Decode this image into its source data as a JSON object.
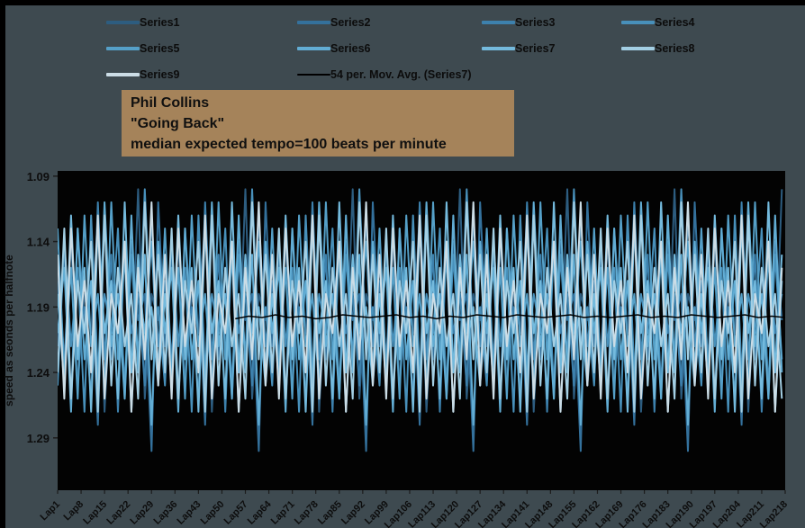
{
  "window": {
    "background": "#3e4a50",
    "edge_color": "#000000"
  },
  "legend": {
    "items": [
      {
        "label": "Series1",
        "color": "#2d5d80"
      },
      {
        "label": "Series2",
        "color": "#34719c"
      },
      {
        "label": "Series3",
        "color": "#3d81ad"
      },
      {
        "label": "Series4",
        "color": "#4890ba"
      },
      {
        "label": "Series5",
        "color": "#55a0c8"
      },
      {
        "label": "Series6",
        "color": "#62add4"
      },
      {
        "label": "Series7",
        "color": "#74badd"
      },
      {
        "label": "Series8",
        "color": "#a3cfe4"
      },
      {
        "label": "Series9",
        "color": "#ccdde6"
      },
      {
        "label": "54 per. Mov. Avg. (Series7)",
        "color": "#000000"
      }
    ]
  },
  "title_box": {
    "background": "#a5835a",
    "line1": "Phil Collins",
    "line2": "\"Going Back\"",
    "line3": "median expected tempo=100 beats per minute"
  },
  "chart_data": {
    "type": "line",
    "title": "Phil Collins \"Going Back\" median expected tempo=100 beats per minute",
    "xlabel": "",
    "ylabel": "speed as seonds per halfnote",
    "x_label_prefix": "Lap",
    "x_range": [
      1,
      218
    ],
    "x_tick_labels": [
      "Lap1",
      "Lap8",
      "Lap15",
      "Lap22",
      "Lap29",
      "Lap36",
      "Lap43",
      "Lap50",
      "Lap57",
      "Lap64",
      "Lap71",
      "Lap78",
      "Lap85",
      "Lap92",
      "Lap99",
      "Lap106",
      "Lap113",
      "Lap120",
      "Lap127",
      "Lap134",
      "Lap141",
      "Lap148",
      "Lap155",
      "Lap162",
      "Lap169",
      "Lap176",
      "Lap183",
      "Lap190",
      "Lap197",
      "Lap204",
      "Lap211",
      "Lap218"
    ],
    "x_tick_step": 7,
    "ylim": [
      1.086,
      1.33
    ],
    "y_ticks": [
      1.09,
      1.14,
      1.19,
      1.24,
      1.29
    ],
    "y_axis_reversed_increasing_downward": true,
    "plot_bg": "#030303",
    "grid": false,
    "legend_position": "top",
    "series": [
      {
        "name": "Series1",
        "color": "#2d5d80",
        "x_start": 1,
        "x_step": 2,
        "values": [
          1.16,
          1.23,
          1.14,
          1.25,
          1.18,
          1.21,
          1.12,
          1.27,
          1.17,
          1.22,
          1.15,
          1.24,
          1.1,
          1.26,
          1.18,
          1.2,
          1.16,
          1.23,
          1.14,
          1.25,
          1.18,
          1.21,
          1.12,
          1.27,
          1.17,
          1.22,
          1.15,
          1.24,
          1.1,
          1.26,
          1.18,
          1.2,
          1.16,
          1.23,
          1.14,
          1.25,
          1.18,
          1.21,
          1.12,
          1.27,
          1.17,
          1.22,
          1.15,
          1.24,
          1.1,
          1.26,
          1.18,
          1.2,
          1.16,
          1.23,
          1.14,
          1.25,
          1.18,
          1.21,
          1.12,
          1.27,
          1.17,
          1.22,
          1.15,
          1.24,
          1.1,
          1.26,
          1.18,
          1.2,
          1.16,
          1.23,
          1.14,
          1.25,
          1.18,
          1.21,
          1.12,
          1.27,
          1.17,
          1.22,
          1.15,
          1.24,
          1.1,
          1.26,
          1.18,
          1.2,
          1.16,
          1.23,
          1.14,
          1.25,
          1.18,
          1.21,
          1.12,
          1.27,
          1.17,
          1.22,
          1.15,
          1.24,
          1.1,
          1.26,
          1.18,
          1.2,
          1.16,
          1.23,
          1.14,
          1.25,
          1.18,
          1.21,
          1.12,
          1.27,
          1.17,
          1.22,
          1.15,
          1.24,
          1.1
        ]
      },
      {
        "name": "Series2",
        "color": "#34719c",
        "x_start": 1,
        "x_step": 2,
        "values": [
          1.22,
          1.15,
          1.26,
          1.13,
          1.21,
          1.17,
          1.28,
          1.12,
          1.23,
          1.16,
          1.25,
          1.14,
          1.2,
          1.18,
          1.3,
          1.11,
          1.22,
          1.15,
          1.26,
          1.13,
          1.21,
          1.17,
          1.28,
          1.12,
          1.23,
          1.16,
          1.25,
          1.14,
          1.2,
          1.18,
          1.3,
          1.11,
          1.22,
          1.15,
          1.26,
          1.13,
          1.21,
          1.17,
          1.28,
          1.12,
          1.23,
          1.16,
          1.25,
          1.14,
          1.2,
          1.18,
          1.3,
          1.11,
          1.22,
          1.15,
          1.26,
          1.13,
          1.21,
          1.17,
          1.28,
          1.12,
          1.23,
          1.16,
          1.25,
          1.14,
          1.2,
          1.18,
          1.3,
          1.11,
          1.22,
          1.15,
          1.26,
          1.13,
          1.21,
          1.17,
          1.28,
          1.12,
          1.23,
          1.16,
          1.25,
          1.14,
          1.2,
          1.18,
          1.3,
          1.11,
          1.22,
          1.15,
          1.26,
          1.13,
          1.21,
          1.17,
          1.28,
          1.12,
          1.23,
          1.16,
          1.25,
          1.14,
          1.2,
          1.18,
          1.3,
          1.11,
          1.22,
          1.15,
          1.26,
          1.13,
          1.21,
          1.17,
          1.28,
          1.12,
          1.23,
          1.16,
          1.25,
          1.14,
          1.2
        ]
      },
      {
        "name": "Series3",
        "color": "#3d81ad",
        "x_start": 1,
        "x_step": 2,
        "values": [
          1.17,
          1.24,
          1.13,
          1.22,
          1.19,
          1.26,
          1.11,
          1.23,
          1.15,
          1.27,
          1.14,
          1.21,
          1.18,
          1.25,
          1.12,
          1.22,
          1.17,
          1.24,
          1.13,
          1.22,
          1.19,
          1.26,
          1.11,
          1.23,
          1.15,
          1.27,
          1.14,
          1.21,
          1.18,
          1.25,
          1.12,
          1.22,
          1.17,
          1.24,
          1.13,
          1.22,
          1.19,
          1.26,
          1.11,
          1.23,
          1.15,
          1.27,
          1.14,
          1.21,
          1.18,
          1.25,
          1.12,
          1.22,
          1.17,
          1.24,
          1.13,
          1.22,
          1.19,
          1.26,
          1.11,
          1.23,
          1.15,
          1.27,
          1.14,
          1.21,
          1.18,
          1.25,
          1.12,
          1.22,
          1.17,
          1.24,
          1.13,
          1.22,
          1.19,
          1.26,
          1.11,
          1.23,
          1.15,
          1.27,
          1.14,
          1.21,
          1.18,
          1.25,
          1.12,
          1.22,
          1.17,
          1.24,
          1.13,
          1.22,
          1.19,
          1.26,
          1.11,
          1.23,
          1.15,
          1.27,
          1.14,
          1.21,
          1.18,
          1.25,
          1.12,
          1.22,
          1.17,
          1.24,
          1.13,
          1.22,
          1.19,
          1.26,
          1.11,
          1.23,
          1.15,
          1.27,
          1.14,
          1.21,
          1.18
        ]
      },
      {
        "name": "Series4",
        "color": "#4890ba",
        "x_start": 1,
        "x_step": 2,
        "values": [
          1.25,
          1.14,
          1.22,
          1.16,
          1.27,
          1.12,
          1.24,
          1.18,
          1.21,
          1.13,
          1.26,
          1.15,
          1.23,
          1.1,
          1.22,
          1.19,
          1.25,
          1.14,
          1.22,
          1.16,
          1.27,
          1.12,
          1.24,
          1.18,
          1.21,
          1.13,
          1.26,
          1.15,
          1.23,
          1.1,
          1.22,
          1.19,
          1.25,
          1.14,
          1.22,
          1.16,
          1.27,
          1.12,
          1.24,
          1.18,
          1.21,
          1.13,
          1.26,
          1.15,
          1.23,
          1.1,
          1.22,
          1.19,
          1.25,
          1.14,
          1.22,
          1.16,
          1.27,
          1.12,
          1.24,
          1.18,
          1.21,
          1.13,
          1.26,
          1.15,
          1.23,
          1.1,
          1.22,
          1.19,
          1.25,
          1.14,
          1.22,
          1.16,
          1.27,
          1.12,
          1.24,
          1.18,
          1.21,
          1.13,
          1.26,
          1.15,
          1.23,
          1.1,
          1.22,
          1.19,
          1.25,
          1.14,
          1.22,
          1.16,
          1.27,
          1.12,
          1.24,
          1.18,
          1.21,
          1.13,
          1.26,
          1.15,
          1.23,
          1.1,
          1.22,
          1.19,
          1.25,
          1.14,
          1.22,
          1.16,
          1.27,
          1.12,
          1.24,
          1.18,
          1.21,
          1.13,
          1.26,
          1.15,
          1.23
        ]
      },
      {
        "name": "Series5",
        "color": "#55a0c8",
        "x_start": 1,
        "x_step": 2,
        "values": [
          1.13,
          1.24,
          1.16,
          1.26,
          1.12,
          1.22,
          1.18,
          1.25,
          1.11,
          1.23,
          1.15,
          1.27,
          1.17,
          1.21,
          1.14,
          1.24,
          1.13,
          1.24,
          1.16,
          1.26,
          1.12,
          1.22,
          1.18,
          1.25,
          1.11,
          1.23,
          1.15,
          1.27,
          1.17,
          1.21,
          1.14,
          1.24,
          1.13,
          1.24,
          1.16,
          1.26,
          1.12,
          1.22,
          1.18,
          1.25,
          1.11,
          1.23,
          1.15,
          1.27,
          1.17,
          1.21,
          1.14,
          1.24,
          1.13,
          1.24,
          1.16,
          1.26,
          1.12,
          1.22,
          1.18,
          1.25,
          1.11,
          1.23,
          1.15,
          1.27,
          1.17,
          1.21,
          1.14,
          1.24,
          1.13,
          1.24,
          1.16,
          1.26,
          1.12,
          1.22,
          1.18,
          1.25,
          1.11,
          1.23,
          1.15,
          1.27,
          1.17,
          1.21,
          1.14,
          1.24,
          1.13,
          1.24,
          1.16,
          1.26,
          1.12,
          1.22,
          1.18,
          1.25,
          1.11,
          1.23,
          1.15,
          1.27,
          1.17,
          1.21,
          1.14,
          1.24,
          1.13,
          1.24,
          1.16,
          1.26,
          1.12,
          1.22,
          1.18,
          1.25,
          1.11,
          1.23,
          1.15,
          1.27,
          1.17
        ]
      },
      {
        "name": "Series6",
        "color": "#62add4",
        "x_start": 1,
        "x_step": 2,
        "values": [
          1.21,
          1.16,
          1.27,
          1.13,
          1.23,
          1.17,
          1.25,
          1.11,
          1.22,
          1.18,
          1.26,
          1.12,
          1.24,
          1.15,
          1.28,
          1.14,
          1.21,
          1.16,
          1.27,
          1.13,
          1.23,
          1.17,
          1.25,
          1.11,
          1.22,
          1.18,
          1.26,
          1.12,
          1.24,
          1.15,
          1.28,
          1.14,
          1.21,
          1.16,
          1.27,
          1.13,
          1.23,
          1.17,
          1.25,
          1.11,
          1.22,
          1.18,
          1.26,
          1.12,
          1.24,
          1.15,
          1.28,
          1.14,
          1.21,
          1.16,
          1.27,
          1.13,
          1.23,
          1.17,
          1.25,
          1.11,
          1.22,
          1.18,
          1.26,
          1.12,
          1.24,
          1.15,
          1.28,
          1.14,
          1.21,
          1.16,
          1.27,
          1.13,
          1.23,
          1.17,
          1.25,
          1.11,
          1.22,
          1.18,
          1.26,
          1.12,
          1.24,
          1.15,
          1.28,
          1.14,
          1.21,
          1.16,
          1.27,
          1.13,
          1.23,
          1.17,
          1.25,
          1.11,
          1.22,
          1.18,
          1.26,
          1.12,
          1.24,
          1.15,
          1.28,
          1.14,
          1.21,
          1.16,
          1.27,
          1.13,
          1.23,
          1.17,
          1.25,
          1.11,
          1.22,
          1.18,
          1.26,
          1.12,
          1.24
        ]
      },
      {
        "name": "Series7",
        "color": "#74badd",
        "x_start": 1,
        "x_step": 2,
        "values": [
          1.18,
          1.25,
          1.12,
          1.23,
          1.16,
          1.27,
          1.13,
          1.21,
          1.17,
          1.26,
          1.11,
          1.24,
          1.15,
          1.22,
          1.19,
          1.25,
          1.18,
          1.25,
          1.12,
          1.23,
          1.16,
          1.27,
          1.13,
          1.21,
          1.17,
          1.26,
          1.11,
          1.24,
          1.15,
          1.22,
          1.19,
          1.25,
          1.18,
          1.25,
          1.12,
          1.23,
          1.16,
          1.27,
          1.13,
          1.21,
          1.17,
          1.26,
          1.11,
          1.24,
          1.15,
          1.22,
          1.19,
          1.25,
          1.18,
          1.25,
          1.12,
          1.23,
          1.16,
          1.27,
          1.13,
          1.21,
          1.17,
          1.26,
          1.11,
          1.24,
          1.15,
          1.22,
          1.19,
          1.25,
          1.18,
          1.25,
          1.12,
          1.23,
          1.16,
          1.27,
          1.13,
          1.21,
          1.17,
          1.26,
          1.11,
          1.24,
          1.15,
          1.22,
          1.19,
          1.25,
          1.18,
          1.25,
          1.12,
          1.23,
          1.16,
          1.27,
          1.13,
          1.21,
          1.17,
          1.26,
          1.11,
          1.24,
          1.15,
          1.22,
          1.19,
          1.25,
          1.18,
          1.25,
          1.12,
          1.23,
          1.16,
          1.27,
          1.13,
          1.21,
          1.17,
          1.26,
          1.11,
          1.24,
          1.15
        ]
      },
      {
        "name": "Series8",
        "color": "#a3cfe4",
        "x_start": 1,
        "x_step": 2,
        "values": [
          1.24,
          1.13,
          1.26,
          1.17,
          1.21,
          1.14,
          1.27,
          1.12,
          1.25,
          1.16,
          1.22,
          1.18,
          1.26,
          1.11,
          1.23,
          1.15,
          1.24,
          1.13,
          1.26,
          1.17,
          1.21,
          1.14,
          1.27,
          1.12,
          1.25,
          1.16,
          1.22,
          1.18,
          1.26,
          1.11,
          1.23,
          1.15,
          1.24,
          1.13,
          1.26,
          1.17,
          1.21,
          1.14,
          1.27,
          1.12,
          1.25,
          1.16,
          1.22,
          1.18,
          1.26,
          1.11,
          1.23,
          1.15,
          1.24,
          1.13,
          1.26,
          1.17,
          1.21,
          1.14,
          1.27,
          1.12,
          1.25,
          1.16,
          1.22,
          1.18,
          1.26,
          1.11,
          1.23,
          1.15,
          1.24,
          1.13,
          1.26,
          1.17,
          1.21,
          1.14,
          1.27,
          1.12,
          1.25,
          1.16,
          1.22,
          1.18,
          1.26,
          1.11,
          1.23,
          1.15,
          1.24,
          1.13,
          1.26,
          1.17,
          1.21,
          1.14,
          1.27,
          1.12,
          1.25,
          1.16,
          1.22,
          1.18,
          1.26,
          1.11,
          1.23,
          1.15,
          1.24,
          1.13,
          1.26,
          1.17,
          1.21,
          1.14,
          1.27,
          1.12,
          1.25,
          1.16,
          1.22,
          1.18,
          1.26
        ]
      },
      {
        "name": "Series9",
        "color": "#ccdde6",
        "x_start": 1,
        "x_step": 2,
        "values": [
          1.15,
          1.26,
          1.13,
          1.22,
          1.17,
          1.24,
          1.12,
          1.26,
          1.18,
          1.21,
          1.14,
          1.27,
          1.16,
          1.23,
          1.11,
          1.25,
          1.15,
          1.26,
          1.13,
          1.22,
          1.17,
          1.24,
          1.12,
          1.26,
          1.18,
          1.21,
          1.14,
          1.27,
          1.16,
          1.23,
          1.11,
          1.25,
          1.15,
          1.26,
          1.13,
          1.22,
          1.17,
          1.24,
          1.12,
          1.26,
          1.18,
          1.21,
          1.14,
          1.27,
          1.16,
          1.23,
          1.11,
          1.25,
          1.15,
          1.26,
          1.13,
          1.22,
          1.17,
          1.24,
          1.12,
          1.26,
          1.18,
          1.21,
          1.14,
          1.27,
          1.16,
          1.23,
          1.11,
          1.25,
          1.15,
          1.26,
          1.13,
          1.22,
          1.17,
          1.24,
          1.12,
          1.26,
          1.18,
          1.21,
          1.14,
          1.27,
          1.16,
          1.23,
          1.11,
          1.25,
          1.15,
          1.26,
          1.13,
          1.22,
          1.17,
          1.24,
          1.12,
          1.26,
          1.18,
          1.21,
          1.14,
          1.27,
          1.16,
          1.23,
          1.11,
          1.25,
          1.15,
          1.26,
          1.13,
          1.22,
          1.17,
          1.24,
          1.12,
          1.26,
          1.18,
          1.21,
          1.14,
          1.27,
          1.16
        ]
      }
    ],
    "moving_average": {
      "name": "54 per. Mov. Avg. (Series7)",
      "color": "#000000",
      "period": 54,
      "start_x": 54,
      "end_x": 218,
      "values": [
        1.199,
        1.197,
        1.198,
        1.196,
        1.198,
        1.197,
        1.199,
        1.198,
        1.196,
        1.197,
        1.198,
        1.197,
        1.196,
        1.198,
        1.197,
        1.199,
        1.197,
        1.198,
        1.196,
        1.197,
        1.198,
        1.196,
        1.197,
        1.198,
        1.197,
        1.196,
        1.198,
        1.197,
        1.198,
        1.197,
        1.196,
        1.198,
        1.197,
        1.198,
        1.196,
        1.197,
        1.198,
        1.197,
        1.196,
        1.198,
        1.197,
        1.198
      ]
    }
  }
}
